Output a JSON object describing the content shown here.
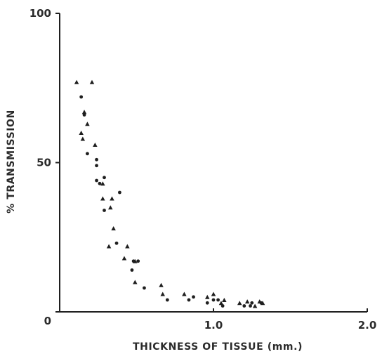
{
  "chart_data": {
    "type": "scatter",
    "title": "",
    "xlabel": "THICKNESS OF TISSUE (mm.)",
    "ylabel": "% TRANSMISSION",
    "xlim": [
      0,
      2.0
    ],
    "ylim": [
      0,
      100
    ],
    "x_ticks": [
      {
        "value": 1.0,
        "label": "1.0"
      },
      {
        "value": 2.0,
        "label": "2.0"
      }
    ],
    "y_ticks": [
      {
        "value": 0,
        "label": "0"
      },
      {
        "value": 50,
        "label": "50"
      },
      {
        "value": 100,
        "label": "100"
      }
    ],
    "grid": false,
    "legend": "none",
    "series": [
      {
        "marker": "triangle",
        "points": [
          {
            "x": 0.11,
            "y": 77
          },
          {
            "x": 0.21,
            "y": 77
          },
          {
            "x": 0.14,
            "y": 60
          },
          {
            "x": 0.16,
            "y": 67
          },
          {
            "x": 0.15,
            "y": 58
          },
          {
            "x": 0.18,
            "y": 63
          },
          {
            "x": 0.23,
            "y": 56
          },
          {
            "x": 0.28,
            "y": 43
          },
          {
            "x": 0.28,
            "y": 38
          },
          {
            "x": 0.33,
            "y": 35
          },
          {
            "x": 0.34,
            "y": 38
          },
          {
            "x": 0.35,
            "y": 28
          },
          {
            "x": 0.32,
            "y": 22
          },
          {
            "x": 0.42,
            "y": 18
          },
          {
            "x": 0.44,
            "y": 22
          },
          {
            "x": 0.49,
            "y": 17
          },
          {
            "x": 0.49,
            "y": 10
          },
          {
            "x": 0.66,
            "y": 9
          },
          {
            "x": 0.67,
            "y": 6
          },
          {
            "x": 0.81,
            "y": 6
          },
          {
            "x": 0.96,
            "y": 5
          },
          {
            "x": 1.0,
            "y": 6
          },
          {
            "x": 1.05,
            "y": 3
          },
          {
            "x": 1.07,
            "y": 4
          },
          {
            "x": 1.17,
            "y": 3
          },
          {
            "x": 1.22,
            "y": 3.5
          },
          {
            "x": 1.27,
            "y": 2
          },
          {
            "x": 1.3,
            "y": 3.5
          },
          {
            "x": 1.32,
            "y": 3
          }
        ]
      },
      {
        "marker": "circle",
        "points": [
          {
            "x": 0.14,
            "y": 72
          },
          {
            "x": 0.16,
            "y": 66
          },
          {
            "x": 0.18,
            "y": 53
          },
          {
            "x": 0.24,
            "y": 51
          },
          {
            "x": 0.24,
            "y": 49
          },
          {
            "x": 0.24,
            "y": 44
          },
          {
            "x": 0.26,
            "y": 43
          },
          {
            "x": 0.29,
            "y": 45
          },
          {
            "x": 0.29,
            "y": 34
          },
          {
            "x": 0.39,
            "y": 40
          },
          {
            "x": 0.37,
            "y": 23
          },
          {
            "x": 0.48,
            "y": 17
          },
          {
            "x": 0.47,
            "y": 14
          },
          {
            "x": 0.51,
            "y": 17
          },
          {
            "x": 0.55,
            "y": 8
          },
          {
            "x": 0.7,
            "y": 4
          },
          {
            "x": 0.84,
            "y": 4
          },
          {
            "x": 0.87,
            "y": 5
          },
          {
            "x": 0.96,
            "y": 3
          },
          {
            "x": 1.0,
            "y": 4
          },
          {
            "x": 1.03,
            "y": 4
          },
          {
            "x": 1.06,
            "y": 2
          },
          {
            "x": 1.2,
            "y": 2
          },
          {
            "x": 1.24,
            "y": 2
          },
          {
            "x": 1.25,
            "y": 3
          },
          {
            "x": 1.31,
            "y": 3
          }
        ]
      }
    ]
  }
}
